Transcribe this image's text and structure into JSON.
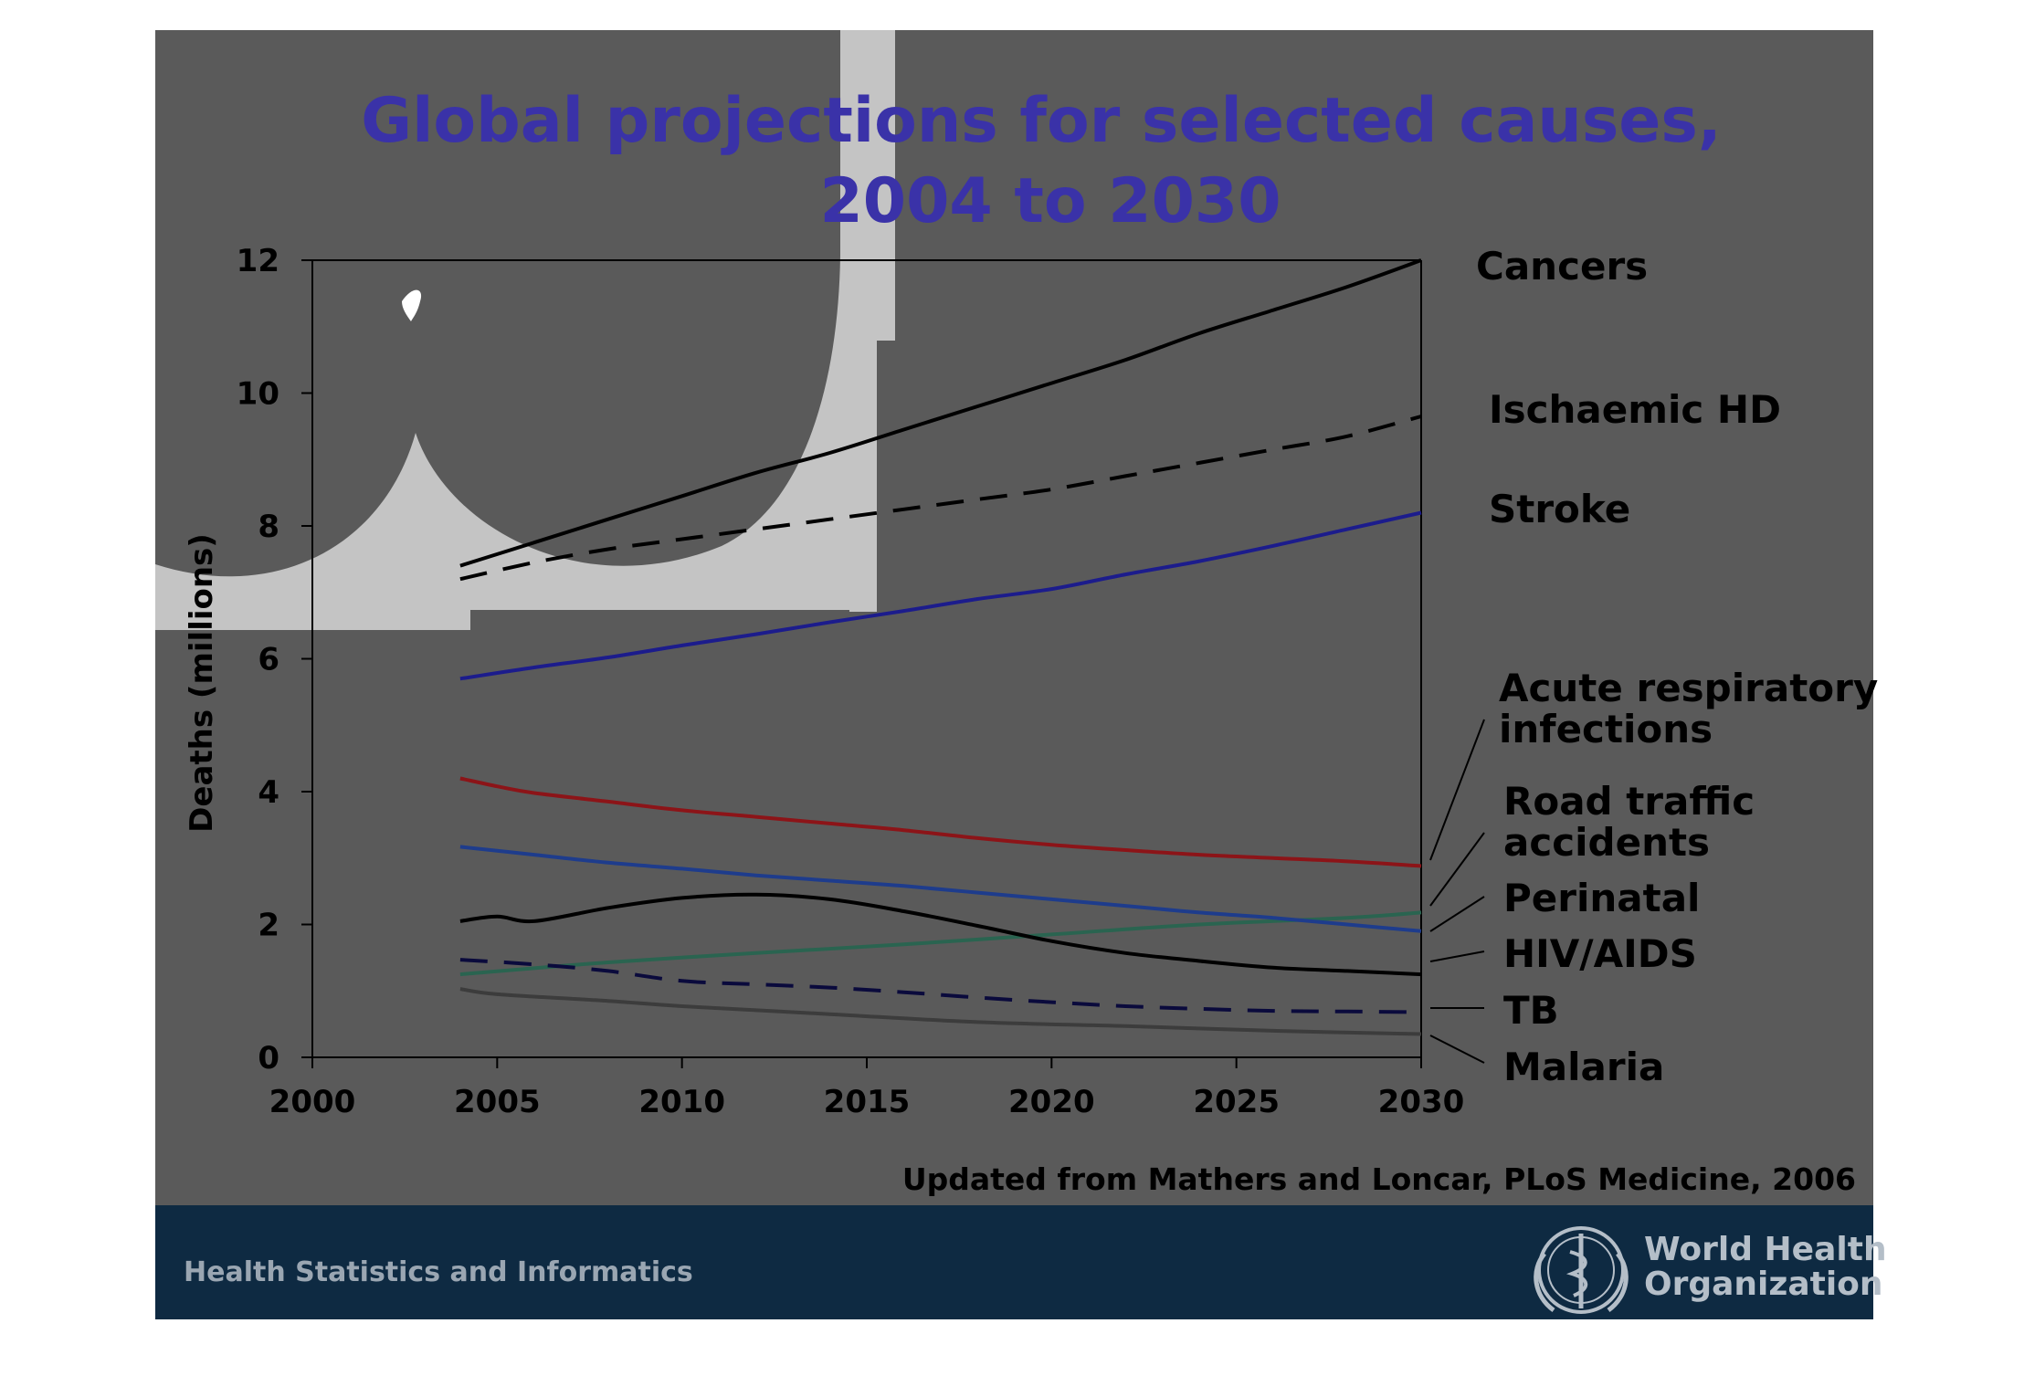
{
  "slide": {
    "title_line1": "Global projections for selected causes,",
    "title_line2": "2004 to 2030",
    "source": "Updated from Mathers and Loncar, PLoS Medicine, 2006",
    "footer_left": "Health Statistics and Informatics",
    "logo_line1": "World Health",
    "logo_line2": "Organization",
    "colors": {
      "background": "#5a5a5a",
      "light_shape": "#c4c4c4",
      "title": "#3a32a8",
      "footer_bar": "#0e2a42",
      "footer_text": "#9aa6b2",
      "logo": "#b4bec8"
    }
  },
  "chart_data": {
    "type": "line",
    "title": "Global projections for selected causes, 2004 to 2030",
    "xlabel": "",
    "ylabel": "Deaths (millions)",
    "xlim": [
      2000,
      2030
    ],
    "ylim": [
      0,
      12
    ],
    "x_ticks": [
      "2000",
      "2005",
      "2010",
      "2015",
      "2020",
      "2025",
      "2030"
    ],
    "y_ticks": [
      "0",
      "2",
      "4",
      "6",
      "8",
      "10",
      "12"
    ],
    "grid": false,
    "legend": "labels at right end of lines",
    "series": [
      {
        "name": "Cancers",
        "color": "#000000",
        "dash": "solid",
        "x": [
          2004,
          2006,
          2008,
          2010,
          2012,
          2014,
          2016,
          2018,
          2020,
          2022,
          2024,
          2026,
          2028,
          2030
        ],
        "y": [
          7.4,
          7.75,
          8.1,
          8.45,
          8.8,
          9.1,
          9.45,
          9.8,
          10.15,
          10.5,
          10.9,
          11.25,
          11.6,
          12.0
        ]
      },
      {
        "name": "Ischaemic HD",
        "color": "#000000",
        "dash": "dashed",
        "x": [
          2004,
          2006,
          2008,
          2010,
          2012,
          2014,
          2016,
          2018,
          2020,
          2022,
          2024,
          2026,
          2028,
          2030
        ],
        "y": [
          7.2,
          7.45,
          7.65,
          7.8,
          7.95,
          8.1,
          8.25,
          8.4,
          8.55,
          8.75,
          8.95,
          9.15,
          9.35,
          9.65
        ]
      },
      {
        "name": "Stroke",
        "color": "#1c1c8c",
        "dash": "solid",
        "x": [
          2004,
          2006,
          2008,
          2010,
          2012,
          2014,
          2016,
          2018,
          2020,
          2022,
          2024,
          2026,
          2028,
          2030
        ],
        "y": [
          5.7,
          5.87,
          6.02,
          6.2,
          6.37,
          6.55,
          6.72,
          6.9,
          7.05,
          7.27,
          7.47,
          7.7,
          7.95,
          8.2
        ]
      },
      {
        "name": "Acute respiratory infections",
        "color": "#8c1418",
        "dash": "solid",
        "x": [
          2004,
          2005,
          2006,
          2008,
          2010,
          2012,
          2014,
          2016,
          2018,
          2020,
          2022,
          2024,
          2026,
          2028,
          2030
        ],
        "y": [
          4.2,
          4.08,
          3.98,
          3.85,
          3.72,
          3.62,
          3.52,
          3.42,
          3.3,
          3.2,
          3.12,
          3.05,
          3.0,
          2.95,
          2.88
        ]
      },
      {
        "name": "Road traffic accidents",
        "color": "#2a6450",
        "dash": "solid",
        "x": [
          2004,
          2008,
          2012,
          2016,
          2020,
          2024,
          2028,
          2030
        ],
        "y": [
          1.25,
          1.43,
          1.57,
          1.7,
          1.85,
          2.0,
          2.1,
          2.18
        ]
      },
      {
        "name": "Perinatal",
        "color": "#1e3c8c",
        "dash": "solid",
        "x": [
          2004,
          2006,
          2008,
          2010,
          2012,
          2014,
          2016,
          2018,
          2020,
          2022,
          2024,
          2026,
          2028,
          2030
        ],
        "y": [
          3.17,
          3.05,
          2.93,
          2.84,
          2.74,
          2.66,
          2.58,
          2.48,
          2.38,
          2.28,
          2.18,
          2.1,
          2.0,
          1.9
        ]
      },
      {
        "name": "HIV/AIDS",
        "color": "#000000",
        "dash": "solid",
        "x": [
          2004,
          2005,
          2006,
          2008,
          2010,
          2012,
          2014,
          2016,
          2018,
          2020,
          2022,
          2024,
          2026,
          2028,
          2030
        ],
        "y": [
          2.05,
          2.12,
          2.05,
          2.25,
          2.4,
          2.45,
          2.38,
          2.2,
          1.98,
          1.75,
          1.57,
          1.45,
          1.35,
          1.3,
          1.25
        ]
      },
      {
        "name": "TB",
        "color": "#0a0a3c",
        "dash": "dashed",
        "x": [
          2004,
          2006,
          2008,
          2010,
          2012,
          2014,
          2016,
          2018,
          2020,
          2022,
          2024,
          2026,
          2028,
          2030
        ],
        "y": [
          1.47,
          1.4,
          1.3,
          1.15,
          1.1,
          1.05,
          0.98,
          0.9,
          0.83,
          0.77,
          0.73,
          0.7,
          0.69,
          0.68
        ]
      },
      {
        "name": "Malaria",
        "color": "#3c3c3c",
        "dash": "solid",
        "x": [
          2004,
          2005,
          2008,
          2010,
          2014,
          2018,
          2022,
          2026,
          2030
        ],
        "y": [
          1.03,
          0.95,
          0.85,
          0.77,
          0.65,
          0.53,
          0.47,
          0.4,
          0.35
        ]
      }
    ],
    "labels": [
      {
        "series": "Cancers",
        "lines": [
          "Cancers"
        ]
      },
      {
        "series": "Ischaemic HD",
        "lines": [
          "Ischaemic HD"
        ]
      },
      {
        "series": "Stroke",
        "lines": [
          "Stroke"
        ]
      },
      {
        "series": "Acute respiratory infections",
        "lines": [
          "Acute respiratory",
          "infections"
        ]
      },
      {
        "series": "Road traffic accidents",
        "lines": [
          "Road traffic",
          "accidents"
        ]
      },
      {
        "series": "Perinatal",
        "lines": [
          "Perinatal"
        ]
      },
      {
        "series": "HIV/AIDS",
        "lines": [
          "HIV/AIDS"
        ]
      },
      {
        "series": "TB",
        "lines": [
          "TB"
        ]
      },
      {
        "series": "Malaria",
        "lines": [
          "Malaria"
        ]
      }
    ]
  }
}
